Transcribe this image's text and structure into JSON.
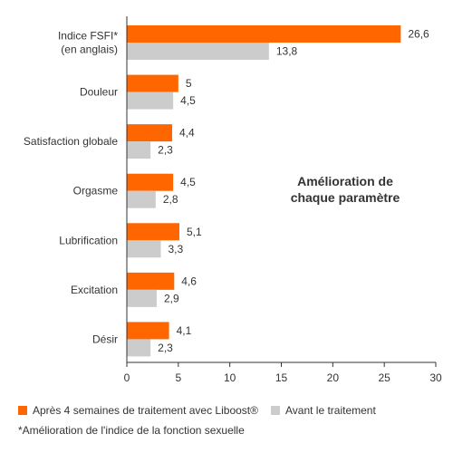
{
  "chart_data": {
    "type": "bar",
    "orientation": "horizontal",
    "categories": [
      "Indice FSFI*\n(en anglais)",
      "Douleur",
      "Satisfaction globale",
      "Orgasme",
      "Lubrification",
      "Excitation",
      "Désir"
    ],
    "series": [
      {
        "name": "Après 4 semaines de traitement avec Liboost®",
        "color": "#ff6600",
        "values": [
          26.6,
          5,
          4.4,
          4.5,
          5.1,
          4.6,
          4.1
        ],
        "labels": [
          "26,6",
          "5",
          "4,4",
          "4,5",
          "5,1",
          "4,6",
          "4,1"
        ]
      },
      {
        "name": "Avant le traitement",
        "color": "#cccccc",
        "values": [
          13.8,
          4.5,
          2.3,
          2.8,
          3.3,
          2.9,
          2.3
        ],
        "labels": [
          "13,8",
          "4,5",
          "2,3",
          "2,8",
          "3,3",
          "2,9",
          "2,3"
        ]
      }
    ],
    "xlim": [
      0,
      30
    ],
    "xticks": [
      0,
      5,
      10,
      15,
      20,
      25,
      30
    ],
    "annotation": "Amélioration de\nchaque paramètre",
    "legend_position": "bottom-left",
    "grid": false
  },
  "footnote": "*Amélioration de l'indice de la fonction sexuelle"
}
